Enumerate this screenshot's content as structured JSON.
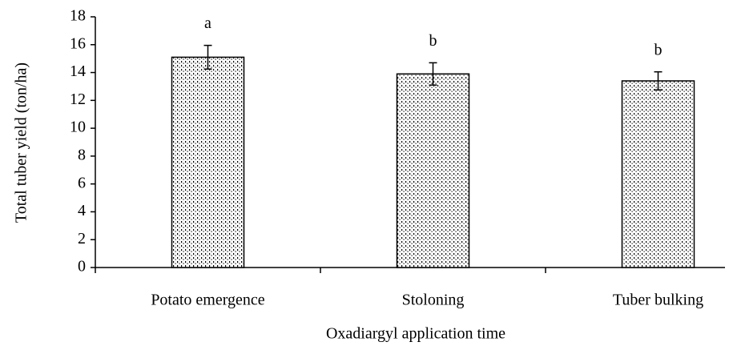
{
  "chart_data": {
    "type": "bar",
    "x_label": "Oxadiargyl application time",
    "y_label": "Total tuber yield (ton/ha)",
    "categories": [
      "Potato emergence",
      "Stoloning",
      "Tuber bulking"
    ],
    "values": [
      15.1,
      13.9,
      13.4
    ],
    "errors": [
      0.85,
      0.8,
      0.65
    ],
    "letters": [
      "a",
      "b",
      "b"
    ],
    "color": "#000000",
    "ylim": [
      0,
      18
    ],
    "yticks": [
      0,
      2,
      4,
      6,
      8,
      10,
      12,
      14,
      16,
      18
    ],
    "grid": false
  }
}
